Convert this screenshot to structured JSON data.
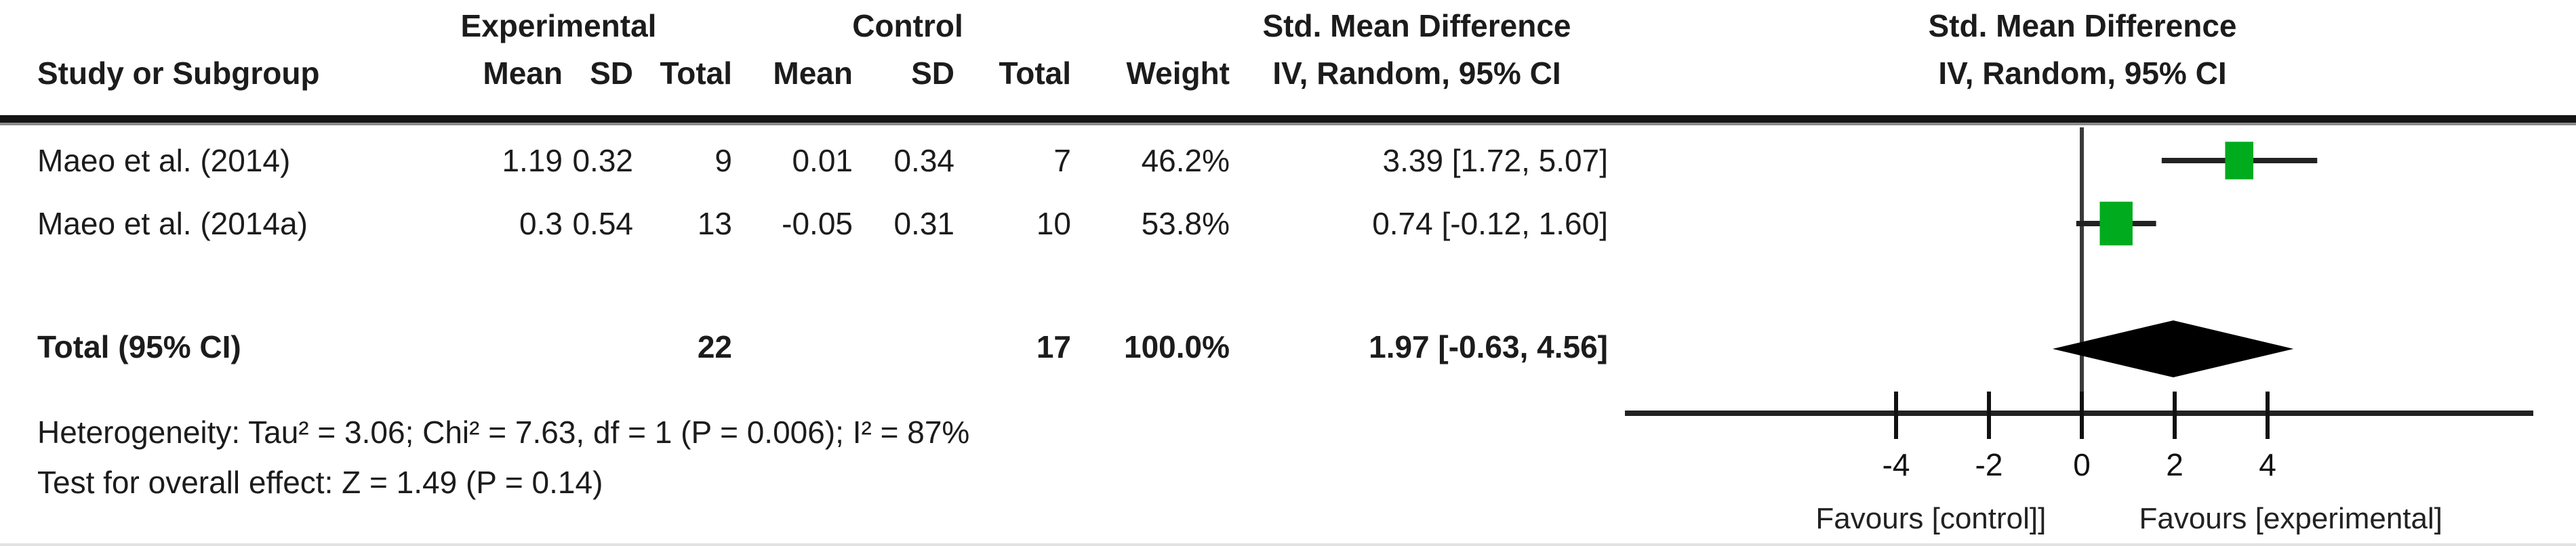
{
  "header": {
    "group_experimental": "Experimental",
    "group_control": "Control",
    "effect_left_title": "Std. Mean Difference",
    "effect_left_subtitle": "IV, Random, 95% CI",
    "effect_right_title": "Std. Mean Difference",
    "effect_right_subtitle": "IV, Random, 95% CI",
    "col_study": "Study or Subgroup",
    "col_mean_exp": "Mean",
    "col_sd_exp": "SD",
    "col_total_exp": "Total",
    "col_mean_ctl": "Mean",
    "col_sd_ctl": "SD",
    "col_total_ctl": "Total",
    "col_weight": "Weight"
  },
  "rows": [
    {
      "study": "Maeo et al. (2014)",
      "exp_mean": "1.19",
      "exp_sd": "0.32",
      "exp_total": "9",
      "ctl_mean": "0.01",
      "ctl_sd": "0.34",
      "ctl_total": "7",
      "weight": "46.2%",
      "smd_ci": "3.39 [1.72, 5.07]"
    },
    {
      "study": "Maeo et al. (2014a)",
      "exp_mean": "0.3",
      "exp_sd": "0.54",
      "exp_total": "13",
      "ctl_mean": "-0.05",
      "ctl_sd": "0.31",
      "ctl_total": "10",
      "weight": "53.8%",
      "smd_ci": "0.74 [-0.12, 1.60]"
    }
  ],
  "total": {
    "label": "Total (95% CI)",
    "exp_total": "22",
    "ctl_total": "17",
    "weight": "100.0%",
    "smd_ci": "1.97 [-0.63, 4.56]"
  },
  "footer": {
    "heterogeneity": "Heterogeneity: Tau² = 3.06; Chi² = 7.63, df = 1 (P = 0.006); I² = 87%",
    "overall_effect": "Test for overall effect: Z = 1.49 (P = 0.14)"
  },
  "chart_data": {
    "type": "forest",
    "effect_measure": "Std. Mean Difference",
    "model": "IV, Random, 95% CI",
    "x_axis": {
      "ticks": [
        -4,
        -2,
        0,
        2,
        4
      ],
      "range": [
        -4.9,
        5.6
      ]
    },
    "studies": [
      {
        "name": "Maeo et al. (2014)",
        "smd": 3.39,
        "ci_low": 1.72,
        "ci_high": 5.07,
        "weight_pct": 46.2
      },
      {
        "name": "Maeo et al. (2014a)",
        "smd": 0.74,
        "ci_low": -0.12,
        "ci_high": 1.6,
        "weight_pct": 53.8
      }
    ],
    "total": {
      "smd": 1.97,
      "ci_low": -0.63,
      "ci_high": 4.56
    },
    "favours_left": "Favours [control]]",
    "favours_right": "Favours [experimental]",
    "marker_color": "#00AB1E",
    "diamond_color": "#000000",
    "line_color": "#222222"
  }
}
